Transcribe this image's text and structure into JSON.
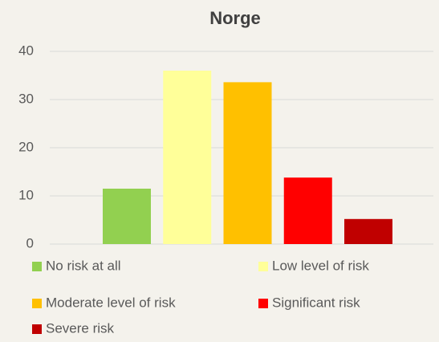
{
  "chart_data": {
    "type": "bar",
    "title": "Norge",
    "series": [
      {
        "name": "No risk at all",
        "color": "#92d050",
        "values": [
          11.5
        ]
      },
      {
        "name": "Low level of risk",
        "color": "#ffff99",
        "values": [
          36
        ]
      },
      {
        "name": "Moderate level of risk",
        "color": "#ffc000",
        "values": [
          33.6
        ]
      },
      {
        "name": "Significant risk",
        "color": "#ff0000",
        "values": [
          13.8
        ]
      },
      {
        "name": "Severe risk",
        "color": "#c00000",
        "values": [
          5.2
        ]
      }
    ],
    "ylim": [
      0,
      40
    ],
    "yticks": [
      0,
      10,
      20,
      30,
      40
    ],
    "grid": true,
    "legend": "bottom"
  }
}
